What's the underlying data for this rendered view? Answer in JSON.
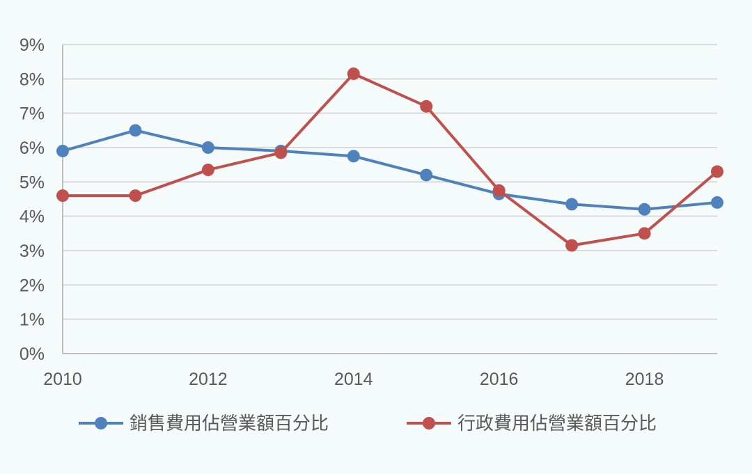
{
  "chart_data": {
    "type": "line",
    "title": "",
    "xlabel": "",
    "ylabel": "",
    "x": [
      2010,
      2011,
      2012,
      2013,
      2014,
      2015,
      2016,
      2017,
      2018,
      2019
    ],
    "xlim": [
      2010,
      2019
    ],
    "ylim": [
      0,
      9
    ],
    "x_ticks": [
      "2010",
      "2012",
      "2014",
      "2016",
      "2018"
    ],
    "y_ticks": [
      "0%",
      "1%",
      "2%",
      "3%",
      "4%",
      "5%",
      "6%",
      "7%",
      "8%",
      "9%"
    ],
    "grid": "horizontal",
    "legend_position": "bottom",
    "series": [
      {
        "name": "銷售費用佔營業額百分比",
        "color": "#4f81bd",
        "values": [
          5.9,
          6.5,
          6.0,
          5.9,
          5.75,
          5.2,
          4.65,
          4.35,
          4.2,
          4.4
        ]
      },
      {
        "name": "行政費用佔營業額百分比",
        "color": "#c0504d",
        "values": [
          4.6,
          4.6,
          5.35,
          5.85,
          8.15,
          7.2,
          4.75,
          3.15,
          3.5,
          5.3
        ]
      }
    ]
  }
}
